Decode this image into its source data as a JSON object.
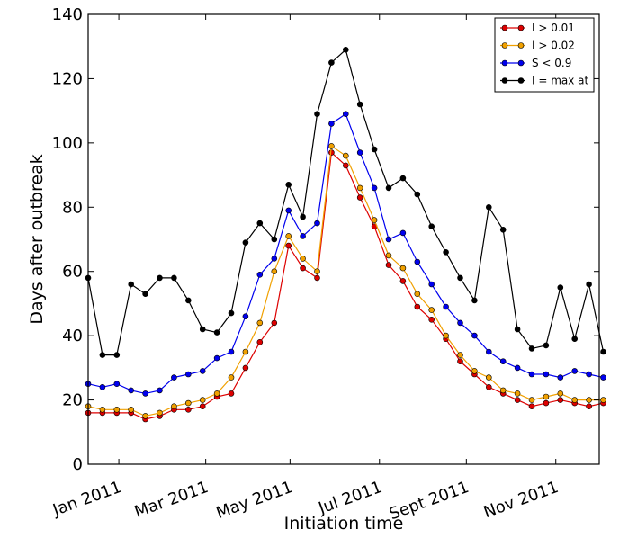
{
  "chart_data": {
    "type": "line",
    "title": "",
    "xlabel": "Initiation time",
    "ylabel": "Days after outbreak",
    "ylim": [
      0,
      140
    ],
    "yticks": [
      0,
      20,
      40,
      60,
      80,
      100,
      120,
      140
    ],
    "grid": false,
    "legend_position": "top-right",
    "x_tick_labels": [
      "Jan 2011",
      "Mar 2011",
      "May 2011",
      "Jul 2011",
      "Sept 2011",
      "Nov 2011"
    ],
    "x_tick_positions": [
      3,
      11.5,
      19.75,
      28.5,
      37,
      45.75
    ],
    "x_range": [
      0,
      50
    ],
    "series": [
      {
        "name": "I > 0.01",
        "color": "#dd0000",
        "values": [
          16,
          16,
          16,
          16,
          14,
          15,
          17,
          17,
          18,
          21,
          22,
          30,
          38,
          44,
          68,
          61,
          58,
          97,
          93,
          83,
          74,
          62,
          57,
          49,
          45,
          39,
          32,
          28,
          24,
          22,
          20,
          18,
          19,
          20,
          19,
          18,
          19
        ]
      },
      {
        "name": "I > 0.02",
        "color": "#f0a000",
        "values": [
          18,
          17,
          17,
          17,
          15,
          16,
          18,
          19,
          20,
          22,
          27,
          35,
          44,
          60,
          71,
          64,
          60,
          99,
          96,
          86,
          76,
          65,
          61,
          53,
          48,
          40,
          34,
          29,
          27,
          23,
          22,
          20,
          21,
          22,
          20,
          20,
          20
        ]
      },
      {
        "name": "S < 0.9",
        "color": "#0000ee",
        "values": [
          25,
          24,
          25,
          23,
          22,
          23,
          27,
          28,
          29,
          33,
          35,
          46,
          59,
          64,
          79,
          71,
          75,
          106,
          109,
          97,
          86,
          70,
          72,
          63,
          56,
          49,
          44,
          40,
          35,
          32,
          30,
          28,
          28,
          27,
          29,
          28,
          27
        ]
      },
      {
        "name": "I = max at",
        "color": "#000000",
        "values": [
          58,
          34,
          34,
          56,
          53,
          58,
          58,
          51,
          42,
          41,
          47,
          69,
          75,
          70,
          87,
          77,
          109,
          125,
          129,
          112,
          98,
          86,
          89,
          84,
          74,
          66,
          58,
          51,
          80,
          73,
          42,
          36,
          37,
          55,
          39,
          56,
          35
        ]
      }
    ]
  }
}
